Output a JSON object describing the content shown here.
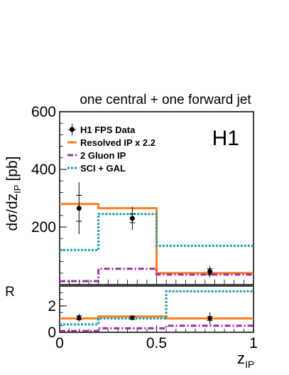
{
  "chart_data": {
    "type": "step",
    "title": "one central + one forward jet",
    "watermark": "H1",
    "xlabel": "z",
    "xlabel_sub": "IP",
    "ylabel": "dσ/dz",
    "ylabel_sub": "IP",
    "ylabel_unit": "[pb]",
    "ratio_ylabel": "R",
    "xlim": [
      0,
      1
    ],
    "x_ticks": [
      "0",
      "0.5",
      "1"
    ],
    "main": {
      "ylim": [
        0,
        600
      ],
      "y_ticks": [
        "200",
        "400",
        "600"
      ],
      "data": {
        "name": "H1 FPS Data",
        "x": [
          0.1,
          0.375,
          0.775
        ],
        "y": [
          265,
          230,
          45
        ],
        "err_stat": [
          45,
          15,
          10
        ],
        "err_tot": [
          90,
          40,
          20
        ]
      },
      "series": [
        {
          "name": "Resolved IP x 2.2",
          "color": "#ff7f1e",
          "style": "solid",
          "edges": [
            0,
            0.2,
            0.5,
            1.0
          ],
          "values": [
            280,
            265,
            40
          ]
        },
        {
          "name": "2 Gluon IP",
          "color": "#9b30a8",
          "style": "dashdot",
          "edges": [
            0,
            0.2,
            0.5,
            1.0
          ],
          "values": [
            12,
            55,
            35
          ]
        },
        {
          "name": "SCI + GAL",
          "color": "#1aa3a3",
          "style": "dotted",
          "edges": [
            0,
            0.2,
            0.5,
            1.0
          ],
          "values": [
            120,
            245,
            135
          ]
        }
      ]
    },
    "ratio": {
      "ylim": [
        0,
        3.5
      ],
      "y_ticks": [
        "0",
        "2"
      ],
      "data": {
        "x": [
          0.1,
          0.375,
          0.775
        ],
        "y": [
          1.1,
          1.1,
          1.05
        ],
        "err_stat": [
          0.15,
          0.12,
          0.15
        ],
        "err_tot": [
          0.3,
          0.2,
          0.45
        ]
      },
      "series": [
        {
          "name": "Resolved IP x 2.2",
          "edges": [
            0,
            0.2,
            0.55,
            1.0
          ],
          "values": [
            1.05,
            1.2,
            1.05
          ]
        },
        {
          "name": "2 Gluon IP",
          "edges": [
            0,
            0.2,
            0.55,
            1.0
          ],
          "values": [
            0.1,
            0.3,
            0.5
          ]
        },
        {
          "name": "SCI + GAL",
          "edges": [
            0,
            0.2,
            0.55,
            1.0
          ],
          "values": [
            0.6,
            1.05,
            3.1
          ]
        }
      ]
    }
  }
}
